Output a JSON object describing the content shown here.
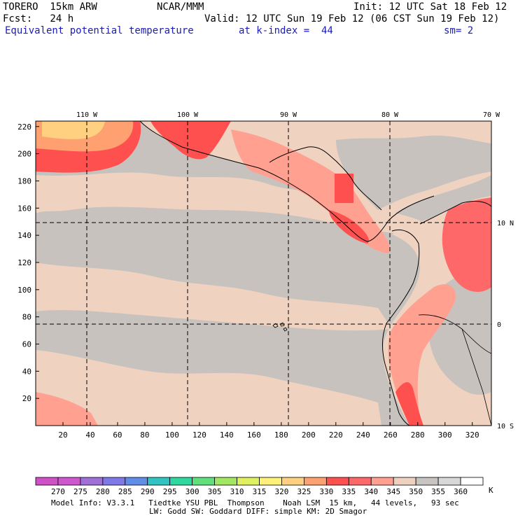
{
  "header": {
    "model": "TORERO  15km ARW",
    "center": "NCAR/MMM",
    "init": "Init: 12 UTC Sat 18 Feb 12",
    "fcst": "Fcst:   24 h",
    "valid": "Valid: 12 UTC Sun 19 Feb 12 (06 CST Sun 19 Feb 12)",
    "field": "Equivalent potential temperature",
    "level": "at k-index =  44",
    "smooth": "sm= 2"
  },
  "map": {
    "x_axis_ticks": [
      "20",
      "40",
      "60",
      "80",
      "100",
      "120",
      "140",
      "160",
      "180",
      "200",
      "220",
      "240",
      "260",
      "280",
      "300",
      "320"
    ],
    "y_axis_ticks": [
      "20",
      "40",
      "60",
      "80",
      "100",
      "120",
      "140",
      "160",
      "180",
      "200",
      "220"
    ],
    "lon_labels": [
      "110 W",
      "100 W",
      "90 W",
      "80 W",
      "70 W"
    ],
    "lat_labels": [
      "10 N",
      "0",
      "10 S"
    ],
    "ocean_color": "#c8c2bf",
    "land_color": "#efd3c0"
  },
  "colorbar": {
    "labels": [
      "270",
      "275",
      "280",
      "285",
      "290",
      "295",
      "300",
      "305",
      "310",
      "315",
      "320",
      "325",
      "330",
      "335",
      "340",
      "345",
      "350",
      "355",
      "360"
    ],
    "unit": "K",
    "colors": [
      "#cf56cf",
      "#a070d8",
      "#7f78e8",
      "#5f8ee8",
      "#2fc3c3",
      "#2fd8a0",
      "#5fe07a",
      "#9fe860",
      "#dff060",
      "#fff07a",
      "#ffd080",
      "#ffa070",
      "#ff5050",
      "#ff6868",
      "#ffa090",
      "#f0d0c0",
      "#c8c4c0",
      "#d8d8d8",
      "#ffffff"
    ]
  },
  "footer": {
    "line1": "Model Info: V3.3.1   Tiedtke YSU PBL  Thompson    Noah LSM  15 km,   44 levels,   93 sec",
    "line2": "LW: Godd SW: Goddard DIFF: simple KM: 2D Smagor"
  }
}
